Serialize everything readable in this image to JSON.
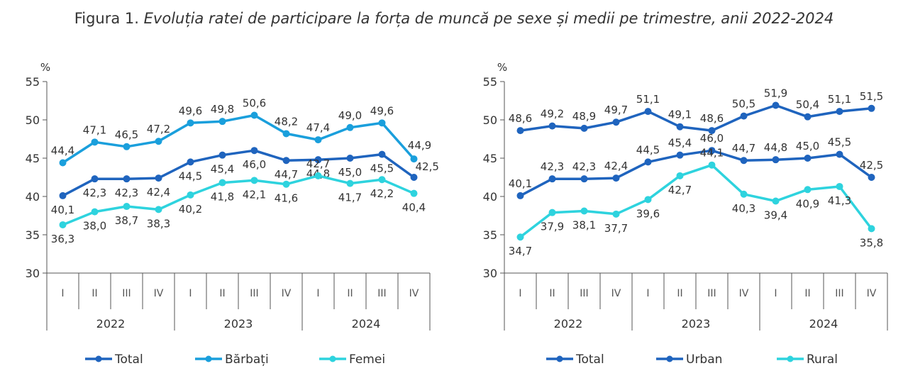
{
  "title": {
    "prefix": "Figura 1.",
    "text": "Evoluția ratei de participare la forța de muncă pe sexe și medii pe trimestre, anii 2022-2024"
  },
  "chart_data": [
    {
      "type": "line",
      "unit_label": "%",
      "ylim": [
        30,
        55
      ],
      "yticks": [
        30,
        35,
        40,
        45,
        50,
        55
      ],
      "quarters": [
        "I",
        "II",
        "III",
        "IV",
        "I",
        "II",
        "III",
        "IV",
        "I",
        "II",
        "III",
        "IV"
      ],
      "years": [
        "2022",
        "2023",
        "2024"
      ],
      "legend_position": "bottom",
      "grid": false,
      "series": [
        {
          "name": "Total",
          "color": "#1f64be",
          "values": [
            40.1,
            42.3,
            42.3,
            42.4,
            44.5,
            45.4,
            46.0,
            44.7,
            44.8,
            45.0,
            45.5,
            42.5
          ],
          "labels": [
            "40,1",
            "42,3",
            "42,3",
            "42,4",
            "44,5",
            "45,4",
            "46,0",
            "44,7",
            "44,8",
            "45,0",
            "45,5",
            "42,5"
          ]
        },
        {
          "name": "Bărbați",
          "color": "#1a9fdc",
          "values": [
            44.4,
            47.1,
            46.5,
            47.2,
            49.6,
            49.8,
            50.6,
            48.2,
            47.4,
            49.0,
            49.6,
            44.9
          ],
          "labels": [
            "44,4",
            "47,1",
            "46,5",
            "47,2",
            "49,6",
            "49,8",
            "50,6",
            "48,2",
            "47,4",
            "49,0",
            "49,6",
            "44,9"
          ]
        },
        {
          "name": "Femei",
          "color": "#2ed3de",
          "values": [
            36.3,
            38.0,
            38.7,
            38.3,
            40.2,
            41.8,
            42.1,
            41.6,
            42.7,
            41.7,
            42.2,
            40.4
          ],
          "labels": [
            "36,3",
            "38,0",
            "38,7",
            "38,3",
            "40,2",
            "41,8",
            "42,1",
            "41,6",
            "42,7",
            "41,7",
            "42,2",
            "40,4"
          ]
        }
      ]
    },
    {
      "type": "line",
      "unit_label": "%",
      "ylim": [
        30,
        55
      ],
      "yticks": [
        30,
        35,
        40,
        45,
        50,
        55
      ],
      "quarters": [
        "I",
        "II",
        "III",
        "IV",
        "I",
        "II",
        "III",
        "IV",
        "I",
        "II",
        "III",
        "IV"
      ],
      "years": [
        "2022",
        "2023",
        "2024"
      ],
      "legend_position": "bottom",
      "grid": false,
      "series": [
        {
          "name": "Total",
          "color": "#1f64be",
          "values": [
            40.1,
            42.3,
            42.3,
            42.4,
            44.5,
            45.4,
            46.0,
            44.7,
            44.8,
            45.0,
            45.5,
            42.5
          ],
          "labels": [
            "40,1",
            "42,3",
            "42,3",
            "42,4",
            "44,5",
            "45,4",
            "46,0",
            "44,7",
            "44,8",
            "45,0",
            "45,5",
            "42,5"
          ]
        },
        {
          "name": "Urban",
          "color": "#1f64be",
          "values": [
            48.6,
            49.2,
            48.9,
            49.7,
            51.1,
            49.1,
            48.6,
            50.5,
            51.9,
            50.4,
            51.1,
            51.5
          ],
          "labels": [
            "48,6",
            "49,2",
            "48,9",
            "49,7",
            "51,1",
            "49,1",
            "48,6",
            "50,5",
            "51,9",
            "50,4",
            "51,1",
            "51,5"
          ]
        },
        {
          "name": "Rural",
          "color": "#2ed3de",
          "values": [
            34.7,
            37.9,
            38.1,
            37.7,
            39.6,
            42.7,
            44.1,
            40.3,
            39.4,
            40.9,
            41.3,
            35.8
          ],
          "labels": [
            "34,7",
            "37,9",
            "38,1",
            "37,7",
            "39,6",
            "42,7",
            "44,1",
            "40,3",
            "39,4",
            "40,9",
            "41,3",
            "35,8"
          ]
        }
      ]
    }
  ]
}
